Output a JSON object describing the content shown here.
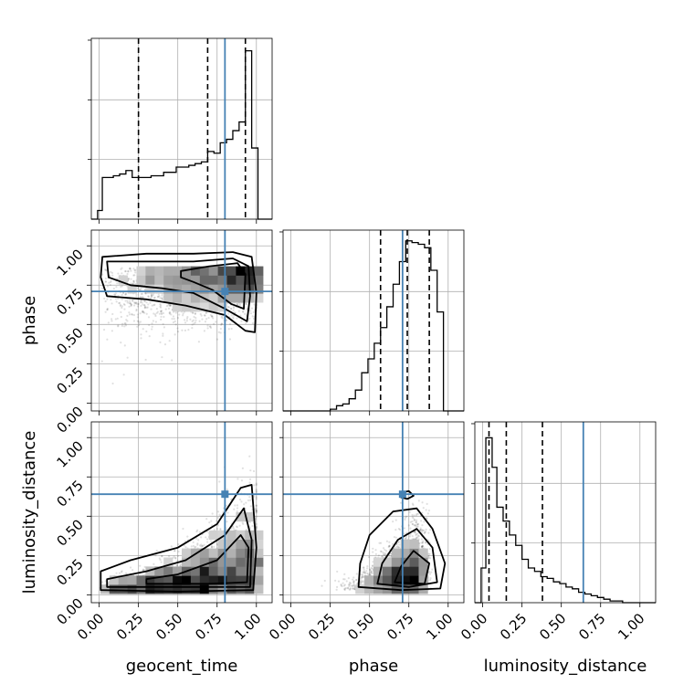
{
  "chart_data": {
    "type": "scatter",
    "subtype": "corner plot",
    "parameters": [
      "geocent_time",
      "phase",
      "luminosity_distance"
    ],
    "axis_labels": {
      "x": [
        "geocent_time",
        "phase",
        "luminosity_distance"
      ],
      "y": [
        "phase",
        "luminosity_distance"
      ]
    },
    "tick_labels": [
      "0.00",
      "0.25",
      "0.50",
      "0.75",
      "1.00"
    ],
    "range": [
      -0.05,
      1.1
    ],
    "truths": {
      "geocent_time": 0.8,
      "phase": 0.71,
      "luminosity_distance": 0.64
    },
    "quantiles": {
      "geocent_time": [
        0.25,
        0.69,
        0.93
      ],
      "phase": [
        0.57,
        0.74,
        0.88
      ],
      "luminosity_distance": [
        0.04,
        0.15,
        0.38
      ]
    },
    "histograms": {
      "geocent_time": {
        "edges": [
          -0.05,
          -0.01,
          0.02,
          0.06,
          0.09,
          0.13,
          0.17,
          0.21,
          0.25,
          0.29,
          0.33,
          0.37,
          0.41,
          0.45,
          0.49,
          0.53,
          0.57,
          0.61,
          0.65,
          0.69,
          0.73,
          0.77,
          0.81,
          0.85,
          0.89,
          0.93,
          0.97,
          1.01,
          1.05,
          1.1
        ],
        "counts": [
          0,
          0.05,
          0.24,
          0.24,
          0.25,
          0.26,
          0.28,
          0.24,
          0.24,
          0.24,
          0.25,
          0.25,
          0.27,
          0.27,
          0.3,
          0.3,
          0.31,
          0.32,
          0.33,
          0.39,
          0.38,
          0.44,
          0.46,
          0.51,
          0.56,
          0.97,
          0.41,
          0,
          0
        ]
      },
      "phase": {
        "edges": [
          -0.05,
          -0.01,
          0.02,
          0.06,
          0.09,
          0.13,
          0.17,
          0.21,
          0.25,
          0.29,
          0.33,
          0.37,
          0.41,
          0.45,
          0.49,
          0.53,
          0.57,
          0.61,
          0.65,
          0.69,
          0.73,
          0.77,
          0.81,
          0.85,
          0.89,
          0.93,
          0.97,
          1.01,
          1.05,
          1.1
        ],
        "counts": [
          0,
          0,
          0,
          0,
          0,
          0,
          0,
          0,
          0.01,
          0.03,
          0.04,
          0.07,
          0.12,
          0.22,
          0.3,
          0.39,
          0.48,
          0.6,
          0.73,
          0.86,
          0.98,
          0.97,
          0.96,
          0.94,
          0.81,
          0.57,
          0,
          0,
          0
        ]
      },
      "luminosity_distance": {
        "edges": [
          -0.05,
          -0.01,
          0.02,
          0.06,
          0.09,
          0.13,
          0.17,
          0.21,
          0.25,
          0.29,
          0.33,
          0.37,
          0.41,
          0.45,
          0.49,
          0.53,
          0.57,
          0.61,
          0.65,
          0.69,
          0.73,
          0.77,
          0.81,
          0.85,
          0.89,
          0.93,
          0.97,
          1.01,
          1.05,
          1.1
        ],
        "counts": [
          0,
          0.2,
          0.95,
          0.78,
          0.55,
          0.47,
          0.39,
          0.33,
          0.25,
          0.2,
          0.18,
          0.15,
          0.14,
          0.12,
          0.11,
          0.09,
          0.08,
          0.06,
          0.05,
          0.04,
          0.03,
          0.02,
          0.01,
          0.01,
          0,
          0,
          0,
          0,
          0
        ]
      }
    },
    "grid": true
  }
}
